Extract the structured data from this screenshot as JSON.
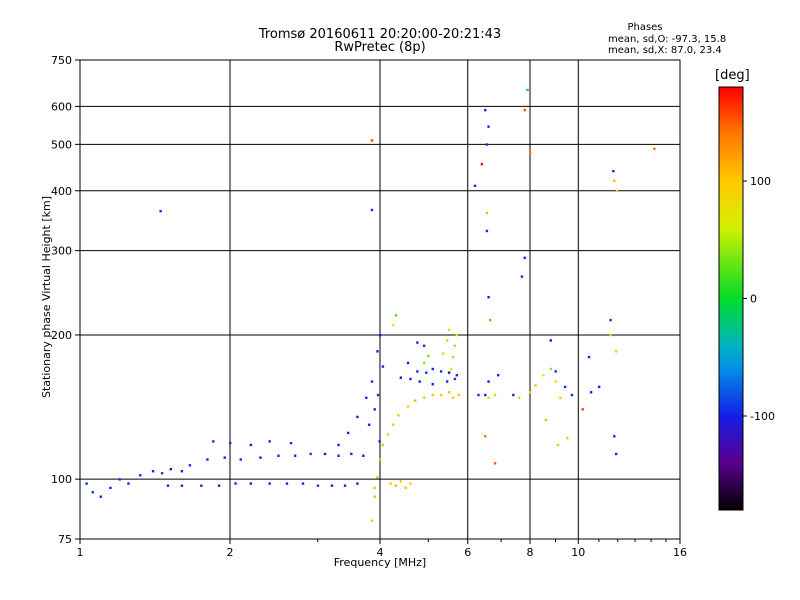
{
  "title_line1": "Tromsø 20160611 20:20:00-20:21:43",
  "title_line2": "RwPretec (8p)",
  "phases": {
    "header": "Phases",
    "line_o": "mean, sd,O: -97.3, 15.8",
    "line_x": "mean, sd,X:  87.0, 23.4"
  },
  "colorbar": {
    "label": "[deg]",
    "ticks": [
      "100",
      "0",
      "-100"
    ],
    "tick_values": [
      100,
      0,
      -100
    ],
    "range": [
      -180,
      180
    ]
  },
  "chart_data": {
    "type": "scatter",
    "title": "Tromsø 20160611 20:20:00-20:21:43",
    "subtitle": "RwPretec (8p)",
    "xlabel": "Frequency [MHz]",
    "ylabel": "Stationary phase Virtual Height [km]",
    "xscale": "log",
    "yscale": "log",
    "xlim": [
      1,
      16
    ],
    "ylim": [
      75,
      750
    ],
    "x_ticks": [
      1,
      2,
      4,
      6,
      8,
      10,
      16
    ],
    "x_tick_labels": [
      "1",
      "2",
      "4",
      "6",
      "8",
      "10",
      "16"
    ],
    "y_ticks": [
      75,
      100,
      200,
      300,
      400,
      500,
      600,
      750
    ],
    "y_tick_labels": [
      "75",
      "100",
      "200",
      "300",
      "400",
      "500",
      "600",
      "750"
    ],
    "grid": true,
    "color_by": "phase [deg]",
    "series": [
      {
        "points": [
          [
            1.03,
            98,
            -95
          ],
          [
            1.06,
            94,
            -90
          ],
          [
            1.1,
            92,
            -100
          ],
          [
            1.15,
            96,
            -95
          ],
          [
            1.2,
            100,
            -92
          ],
          [
            1.25,
            98,
            -100
          ],
          [
            1.32,
            102,
            -95
          ],
          [
            1.4,
            104,
            -98
          ],
          [
            1.46,
            103,
            -92
          ],
          [
            1.52,
            105,
            -100
          ],
          [
            1.6,
            104,
            -96
          ],
          [
            1.66,
            107,
            -95
          ],
          [
            1.5,
            97,
            -100
          ],
          [
            1.6,
            97,
            -98
          ],
          [
            1.75,
            97,
            -95
          ],
          [
            1.9,
            97,
            -100
          ],
          [
            2.05,
            98,
            -96
          ],
          [
            2.2,
            98,
            -99
          ],
          [
            2.4,
            98,
            -95
          ],
          [
            2.6,
            98,
            -100
          ],
          [
            2.8,
            98,
            -97
          ],
          [
            3.0,
            97,
            -93
          ],
          [
            3.2,
            97,
            -98
          ],
          [
            3.4,
            97,
            -95
          ],
          [
            3.6,
            98,
            -100
          ],
          [
            1.8,
            110,
            -96
          ],
          [
            1.95,
            111,
            -98
          ],
          [
            2.1,
            110,
            -95
          ],
          [
            2.3,
            111,
            -100
          ],
          [
            2.5,
            112,
            -95
          ],
          [
            2.7,
            112,
            -98
          ],
          [
            2.9,
            113,
            -92
          ],
          [
            3.1,
            113,
            -100
          ],
          [
            3.3,
            112,
            -96
          ],
          [
            3.5,
            113,
            -95
          ],
          [
            3.7,
            112,
            -98
          ],
          [
            1.85,
            120,
            -95
          ],
          [
            2.0,
            119,
            -92
          ],
          [
            2.2,
            118,
            -100
          ],
          [
            2.4,
            120,
            -96
          ],
          [
            2.65,
            119,
            -95
          ],
          [
            3.3,
            118,
            -98
          ],
          [
            3.45,
            125,
            -100
          ],
          [
            3.6,
            135,
            -96
          ],
          [
            3.75,
            148,
            -95
          ],
          [
            3.85,
            160,
            -98
          ],
          [
            3.95,
            185,
            -100
          ],
          [
            4.0,
            200,
            -94
          ],
          [
            4.05,
            172,
            -100
          ],
          [
            3.9,
            140,
            -95
          ],
          [
            3.8,
            130,
            -97
          ],
          [
            3.96,
            150,
            -92
          ],
          [
            3.99,
            120,
            -96
          ],
          [
            1.45,
            363,
            -92
          ],
          [
            3.85,
            365,
            -96
          ],
          [
            4.75,
            193,
            -98
          ],
          [
            4.9,
            190,
            -95
          ],
          [
            4.55,
            175,
            -100
          ],
          [
            4.75,
            168,
            -96
          ],
          [
            4.95,
            167,
            -92
          ],
          [
            5.1,
            170,
            -98
          ],
          [
            5.3,
            168,
            -95
          ],
          [
            5.5,
            167,
            -100
          ],
          [
            5.7,
            165,
            -96
          ],
          [
            4.4,
            163,
            -100
          ],
          [
            4.6,
            162,
            -95
          ],
          [
            4.8,
            160,
            -98
          ],
          [
            5.1,
            158,
            -100
          ],
          [
            5.45,
            160,
            -95
          ],
          [
            5.65,
            162,
            -97
          ],
          [
            6.3,
            150,
            -92
          ],
          [
            6.5,
            150,
            -98
          ],
          [
            6.6,
            160,
            -100
          ],
          [
            6.9,
            165,
            -95
          ],
          [
            7.4,
            150,
            -96
          ],
          [
            6.5,
            590,
            -100
          ],
          [
            6.55,
            500,
            -95
          ],
          [
            6.6,
            545,
            -98
          ],
          [
            6.55,
            330,
            -96
          ],
          [
            6.6,
            240,
            -100
          ],
          [
            7.8,
            290,
            -95
          ],
          [
            7.7,
            265,
            -98
          ],
          [
            8.8,
            195,
            -100
          ],
          [
            9.0,
            168,
            -96
          ],
          [
            9.4,
            156,
            -95
          ],
          [
            9.7,
            150,
            -98
          ],
          [
            10.6,
            152,
            -100
          ],
          [
            11.6,
            215,
            -95
          ],
          [
            11.8,
            123,
            -96
          ],
          [
            11.9,
            113,
            -98
          ],
          [
            11.75,
            440,
            -100
          ],
          [
            6.2,
            410,
            -95
          ],
          [
            11.0,
            156,
            -96
          ],
          [
            10.5,
            180,
            -100
          ]
        ]
      },
      {
        "points": [
          [
            4.0,
            110,
            105
          ],
          [
            4.05,
            118,
            110
          ],
          [
            4.15,
            124,
            95
          ],
          [
            4.25,
            130,
            100
          ],
          [
            4.35,
            136,
            105
          ],
          [
            4.55,
            142,
            95
          ],
          [
            4.7,
            146,
            110
          ],
          [
            4.9,
            148,
            100
          ],
          [
            5.1,
            150,
            105
          ],
          [
            5.3,
            150,
            95
          ],
          [
            5.5,
            152,
            110
          ],
          [
            5.6,
            148,
            100
          ],
          [
            5.75,
            150,
            105
          ],
          [
            4.2,
            98,
            95
          ],
          [
            4.3,
            97,
            110
          ],
          [
            4.4,
            99,
            100
          ],
          [
            4.5,
            96,
            105
          ],
          [
            4.6,
            98,
            95
          ],
          [
            3.9,
            96,
            100
          ],
          [
            3.95,
            101,
            110
          ],
          [
            3.85,
            82,
            100
          ],
          [
            3.9,
            92,
            105
          ],
          [
            5.6,
            180,
            95
          ],
          [
            5.65,
            190,
            110
          ],
          [
            5.7,
            200,
            60
          ],
          [
            5.5,
            205,
            70
          ],
          [
            5.45,
            195,
            100
          ],
          [
            5.55,
            170,
            65
          ],
          [
            5.35,
            183,
            90
          ],
          [
            4.9,
            175,
            40
          ],
          [
            5.0,
            181,
            30
          ],
          [
            4.3,
            220,
            20
          ],
          [
            4.25,
            210,
            60
          ],
          [
            6.6,
            148,
            85
          ],
          [
            6.8,
            150,
            95
          ],
          [
            7.6,
            148,
            100
          ],
          [
            8.0,
            152,
            90
          ],
          [
            8.2,
            157,
            105
          ],
          [
            8.5,
            165,
            60
          ],
          [
            8.8,
            170,
            40
          ],
          [
            9.0,
            160,
            95
          ],
          [
            9.2,
            148,
            100
          ],
          [
            8.6,
            133,
            110
          ],
          [
            9.5,
            122,
            95
          ],
          [
            9.1,
            118,
            105
          ],
          [
            11.6,
            200,
            90
          ],
          [
            11.9,
            185,
            100
          ],
          [
            11.8,
            420,
            105
          ],
          [
            11.95,
            400,
            95
          ],
          [
            6.55,
            360,
            110
          ],
          [
            6.65,
            215,
            135
          ],
          [
            6.8,
            108,
            150
          ],
          [
            8.0,
            480,
            140
          ],
          [
            3.85,
            510,
            160
          ],
          [
            6.4,
            455,
            175
          ],
          [
            14.2,
            490,
            140
          ],
          [
            7.9,
            650,
            -20
          ],
          [
            7.8,
            590,
            150
          ],
          [
            10.2,
            140,
            155
          ],
          [
            6.5,
            123,
            140
          ]
        ]
      }
    ]
  }
}
